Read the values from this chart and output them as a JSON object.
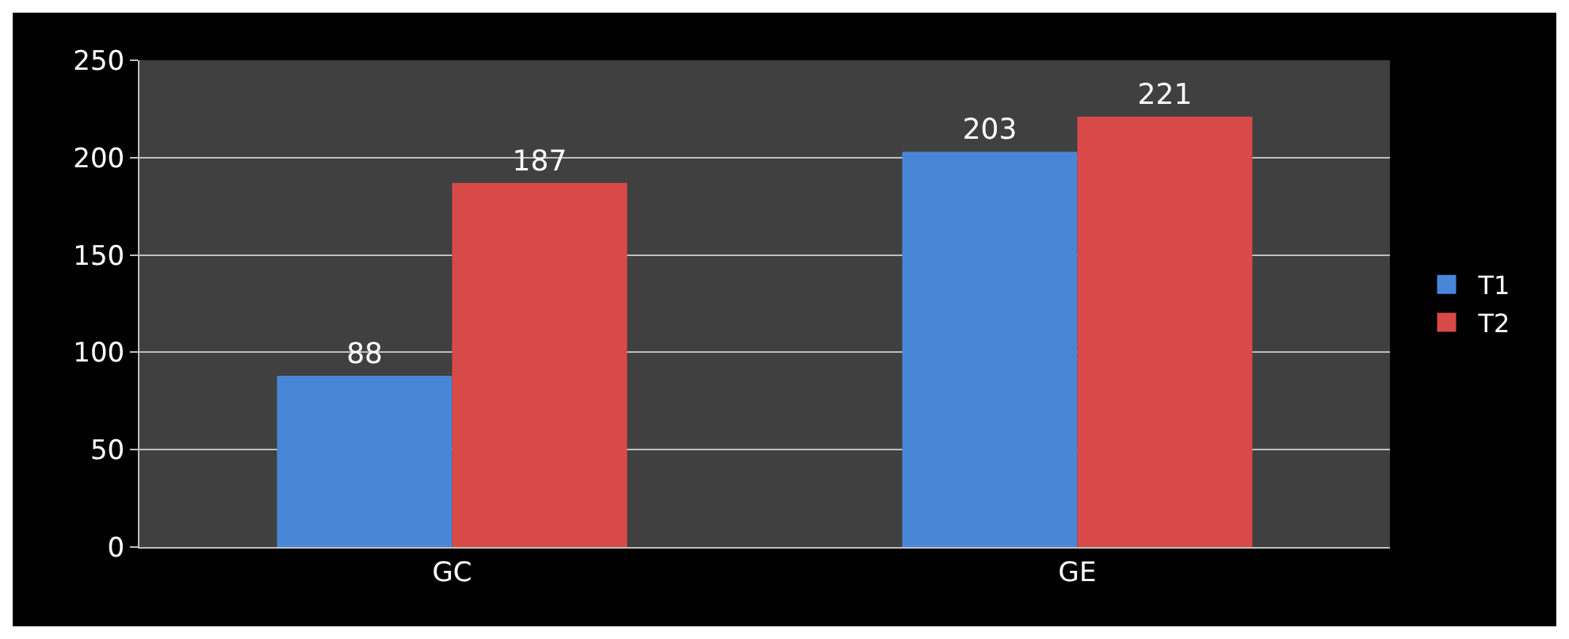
{
  "chart_data": {
    "type": "bar",
    "categories": [
      "GC",
      "GE"
    ],
    "series": [
      {
        "name": "T1",
        "color": "#4a86d8",
        "values": [
          88,
          203
        ]
      },
      {
        "name": "T2",
        "color": "#d84a48",
        "values": [
          187,
          221
        ]
      }
    ],
    "ylim": [
      0,
      250
    ],
    "yticks": [
      0,
      50,
      100,
      150,
      200,
      250
    ],
    "grid": "y",
    "legend": "right",
    "data_labels": true
  }
}
